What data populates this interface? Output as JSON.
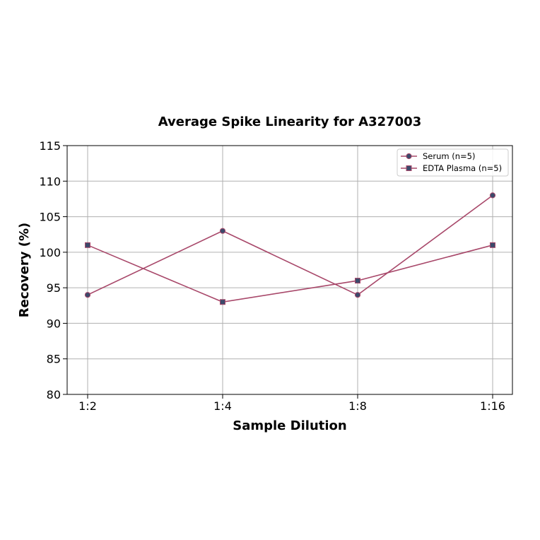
{
  "chart_data": {
    "type": "line",
    "title": "Average Spike Linearity for A327003",
    "xlabel": "Sample Dilution",
    "ylabel": "Recovery (%)",
    "categories": [
      "1:2",
      "1:4",
      "1:8",
      "1:16"
    ],
    "ylim": [
      80,
      115
    ],
    "yticks": [
      80,
      85,
      90,
      95,
      100,
      105,
      110,
      115
    ],
    "grid": true,
    "legend_position": "top-right",
    "series": [
      {
        "name": "Serum (n=5)",
        "marker": "circle",
        "values": [
          94,
          103,
          94,
          108
        ]
      },
      {
        "name": "EDTA Plasma (n=5)",
        "marker": "square",
        "values": [
          101,
          93,
          96,
          101
        ]
      }
    ],
    "colors": {
      "line": "#a8486a",
      "marker": "#3b4a6b",
      "grid": "#b0b0b0",
      "axis": "#000000"
    }
  }
}
